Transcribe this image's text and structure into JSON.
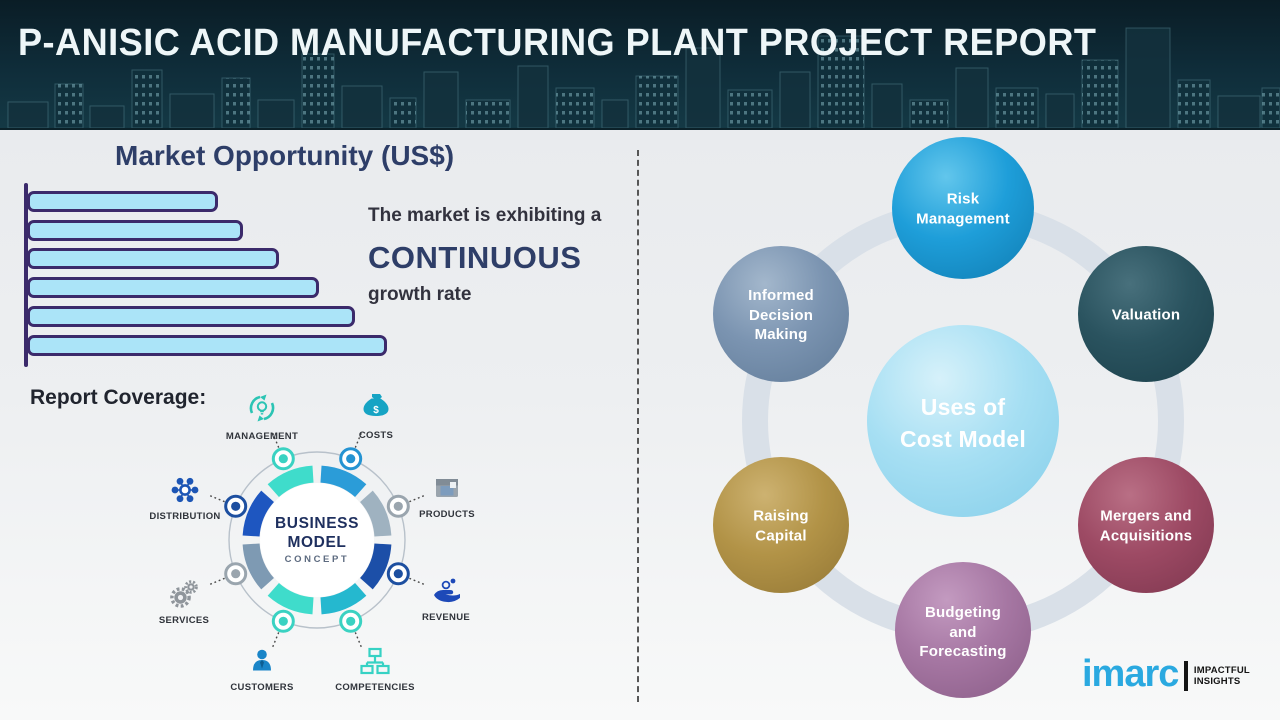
{
  "header": {
    "title": "P-ANISIC ACID MANUFACTURING PLANT PROJECT REPORT"
  },
  "market": {
    "title": "Market Opportunity (US$)",
    "statement_line1": "The market is exhibiting a",
    "statement_line2": "CONTINUOUS",
    "statement_line3": "growth rate"
  },
  "chart_data": {
    "type": "bar",
    "orientation": "horizontal",
    "title": "Market Opportunity (US$)",
    "categories": [
      "",
      "",
      "",
      "",
      "",
      ""
    ],
    "values_pct_of_max": [
      53,
      60,
      70,
      81,
      91,
      100
    ],
    "value_labels_visible": false,
    "axis_tick_labels_visible": false,
    "bar_fill": "#abe4f8",
    "bar_border": "#3b2a6b",
    "annotation": "The market is exhibiting a CONTINUOUS growth rate"
  },
  "report_coverage": {
    "label": "Report Coverage:",
    "center_line1": "BUSINESS",
    "center_line2": "MODEL",
    "center_line3": "CONCEPT",
    "items": [
      {
        "label": "MANAGEMENT",
        "icon": "management-cycle-icon",
        "color": "#2bc4b4"
      },
      {
        "label": "COSTS",
        "icon": "money-bag-icon",
        "color": "#16a4c4"
      },
      {
        "label": "DISTRIBUTION",
        "icon": "network-hub-icon",
        "color": "#1c55b5"
      },
      {
        "label": "PRODUCTS",
        "icon": "package-box-icon",
        "color": "#9aa4ad"
      },
      {
        "label": "SERVICES",
        "icon": "gears-icon",
        "color": "#8f959b"
      },
      {
        "label": "REVENUE",
        "icon": "hand-coins-icon",
        "color": "#1d49b8"
      },
      {
        "label": "CUSTOMERS",
        "icon": "person-icon",
        "color": "#1a85c8"
      },
      {
        "label": "COMPETENCIES",
        "icon": "org-chart-icon",
        "color": "#36d2c4"
      }
    ]
  },
  "cost_model": {
    "center_label": "Uses of\nCost Model",
    "center_color": "#a6dff3",
    "nodes": [
      {
        "label": "Risk\nManagement",
        "color": "#1e9ed9"
      },
      {
        "label": "Informed\nDecision\nMaking",
        "color": "#7b94b1"
      },
      {
        "label": "Valuation",
        "color": "#2a535f"
      },
      {
        "label": "Raising\nCapital",
        "color": "#b29347"
      },
      {
        "label": "Mergers and\nAcquisitions",
        "color": "#9d4a64"
      },
      {
        "label": "Budgeting\nand\nForecasting",
        "color": "#a677a3"
      }
    ]
  },
  "logo": {
    "brand": "imarc",
    "tagline_line1": "IMPACTFUL",
    "tagline_line2": "INSIGHTS",
    "brand_color": "#2aa9e0"
  }
}
